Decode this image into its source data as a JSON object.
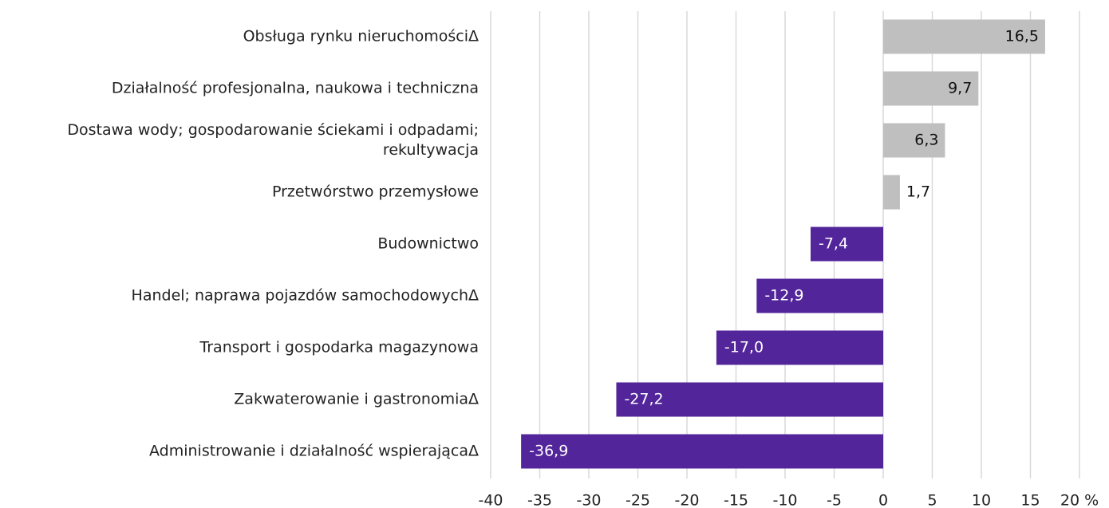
{
  "chart_data": {
    "type": "bar",
    "orientation": "horizontal",
    "categories": [
      "Obsługa rynku nieruchomościΔ",
      "Działalność profesjonalna, naukowa i techniczna",
      "Dostawa wody; gospodarowanie ściekami i odpadami; rekultywacja",
      "Przetwórstwo przemysłowe",
      "Budownictwo",
      "Handel; naprawa pojazdów samochodowychΔ",
      "Transport i gospodarka magazynowa",
      "Zakwaterowanie i gastronomiaΔ",
      "Administrowanie i działalność wspierającaΔ"
    ],
    "values": [
      16.5,
      9.7,
      6.3,
      1.7,
      -7.4,
      -12.9,
      -17.0,
      -27.2,
      -36.9
    ],
    "value_labels": [
      "16,5",
      "9,7",
      "6,3",
      "1,7",
      "-7,4",
      "-12,9",
      "-17,0",
      "-27,2",
      "-36,9"
    ],
    "colors": [
      "#bfbfbf",
      "#bfbfbf",
      "#bfbfbf",
      "#bfbfbf",
      "#52259a",
      "#52259a",
      "#52259a",
      "#52259a",
      "#52259a"
    ],
    "xlim": [
      -40,
      20
    ],
    "xticks": [
      -40,
      -35,
      -30,
      -25,
      -20,
      -15,
      -10,
      -5,
      0,
      5,
      10,
      15,
      {
        "value": 20,
        "label": "20 %"
      }
    ],
    "grid": true
  }
}
